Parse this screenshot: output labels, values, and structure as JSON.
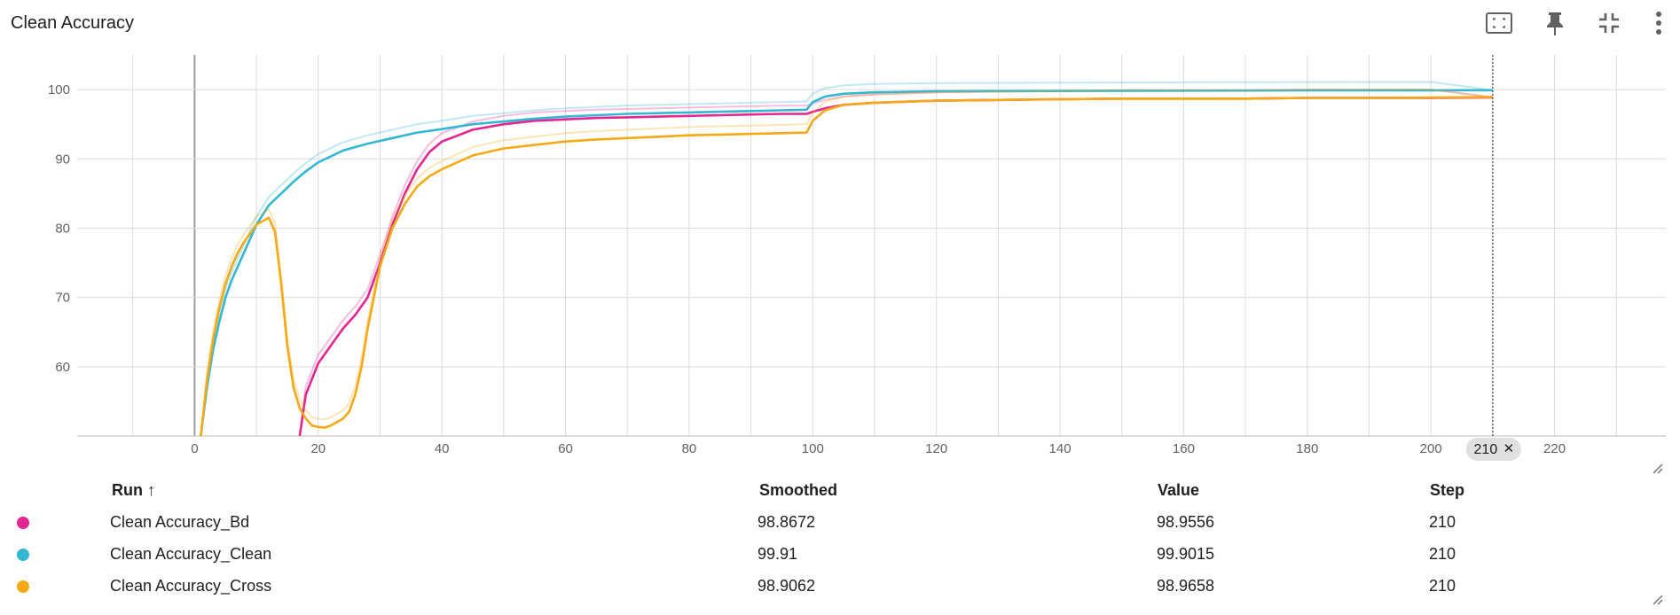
{
  "title": "Clean Accuracy",
  "toolbar": {
    "fit_icon": "fit-domain-icon",
    "pin_icon": "pin-icon",
    "collapse_icon": "fullscreen-exit-icon",
    "menu_icon": "more-vert-icon"
  },
  "table": {
    "headers": {
      "run": "Run ↑",
      "smoothed": "Smoothed",
      "value": "Value",
      "step": "Step"
    },
    "rows": [
      {
        "color": "#e52592",
        "run": "Clean Accuracy_Bd",
        "smoothed": "98.8672",
        "value": "98.9556",
        "step": "210"
      },
      {
        "color": "#33b7d2",
        "run": "Clean Accuracy_Clean",
        "smoothed": "99.91",
        "value": "99.9015",
        "step": "210"
      },
      {
        "color": "#f5a914",
        "run": "Clean Accuracy_Cross",
        "smoothed": "98.9062",
        "value": "98.9658",
        "step": "210"
      }
    ]
  },
  "chart_data": {
    "type": "line",
    "title": "Clean Accuracy",
    "xlabel": "",
    "ylabel": "",
    "xlim": [
      -19,
      238
    ],
    "ylim": [
      50,
      105
    ],
    "x_ticks": [
      0,
      20,
      40,
      60,
      80,
      100,
      120,
      140,
      160,
      180,
      200,
      220
    ],
    "y_ticks": [
      60,
      70,
      80,
      90,
      100
    ],
    "grid": true,
    "hover_step": 210,
    "series": [
      {
        "name": "Clean Accuracy_Bd",
        "color": "#e52592",
        "x": [
          17,
          18,
          20,
          22,
          24,
          26,
          28,
          30,
          32,
          34,
          36,
          38,
          40,
          45,
          50,
          55,
          60,
          65,
          70,
          75,
          80,
          85,
          90,
          95,
          99,
          100,
          102,
          105,
          110,
          120,
          130,
          140,
          150,
          160,
          170,
          180,
          190,
          200,
          210
        ],
        "values": [
          50,
          56,
          60.5,
          63,
          65.5,
          67.5,
          70,
          75,
          80.5,
          85,
          88.5,
          91,
          92.5,
          94.2,
          95,
          95.5,
          95.7,
          95.9,
          96,
          96.1,
          96.2,
          96.3,
          96.4,
          96.5,
          96.5,
          96.8,
          97.3,
          97.8,
          98.1,
          98.4,
          98.5,
          98.6,
          98.7,
          98.7,
          98.7,
          98.8,
          98.8,
          98.8,
          98.87
        ]
      },
      {
        "name": "Clean Accuracy_Clean",
        "color": "#33b7d2",
        "x": [
          1,
          2,
          3,
          4,
          5,
          6,
          8,
          10,
          12,
          14,
          16,
          18,
          20,
          24,
          28,
          32,
          36,
          40,
          45,
          50,
          55,
          60,
          65,
          70,
          75,
          80,
          85,
          90,
          95,
          99,
          100,
          102,
          105,
          110,
          120,
          140,
          160,
          180,
          200,
          210
        ],
        "values": [
          50,
          57,
          62.5,
          66.5,
          70,
          72.5,
          76.5,
          80.5,
          83.3,
          85,
          86.7,
          88.2,
          89.5,
          91.2,
          92.2,
          93,
          93.8,
          94.3,
          95,
          95.4,
          95.8,
          96.1,
          96.3,
          96.5,
          96.6,
          96.7,
          96.8,
          96.9,
          97,
          97.1,
          98.2,
          99,
          99.4,
          99.6,
          99.75,
          99.8,
          99.85,
          99.88,
          99.9,
          99.91
        ]
      },
      {
        "name": "Clean Accuracy_Cross",
        "color": "#f5a914",
        "x": [
          1,
          2,
          3,
          4,
          5,
          6,
          7,
          8,
          10,
          12,
          13,
          14,
          15,
          16,
          17,
          18,
          19,
          20,
          21,
          22,
          23,
          24,
          25,
          26,
          27,
          28,
          30,
          32,
          34,
          36,
          38,
          40,
          45,
          50,
          55,
          60,
          65,
          70,
          75,
          80,
          85,
          90,
          95,
          99,
          100,
          102,
          105,
          110,
          120,
          130,
          140,
          150,
          160,
          170,
          180,
          190,
          200,
          210
        ],
        "values": [
          50,
          58,
          64,
          68.5,
          72,
          74.5,
          76.5,
          78,
          80.5,
          81.5,
          79.5,
          72,
          63,
          57,
          54,
          52.5,
          51.5,
          51.3,
          51.2,
          51.5,
          52,
          52.5,
          53.5,
          56,
          60,
          65.5,
          74.5,
          80,
          83.5,
          86,
          87.5,
          88.5,
          90.5,
          91.5,
          92,
          92.5,
          92.8,
          93,
          93.2,
          93.4,
          93.5,
          93.6,
          93.7,
          93.8,
          95.5,
          97,
          97.8,
          98.1,
          98.4,
          98.5,
          98.6,
          98.7,
          98.7,
          98.7,
          98.8,
          98.8,
          98.85,
          98.91
        ]
      }
    ]
  }
}
